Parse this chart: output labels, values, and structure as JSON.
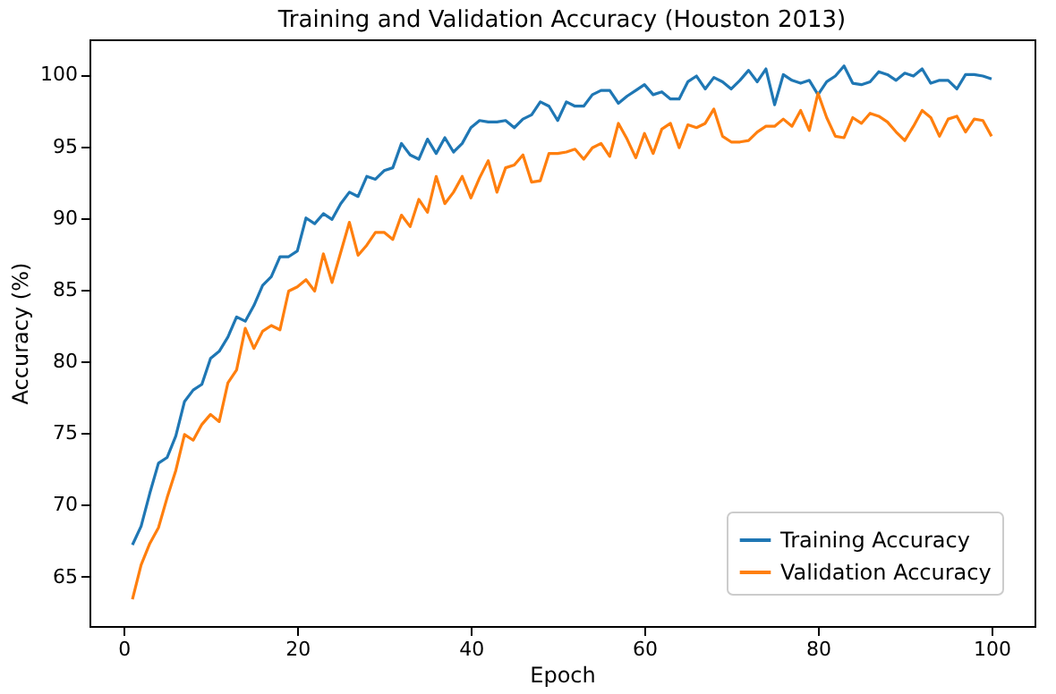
{
  "chart_data": {
    "type": "line",
    "title": "Training and Validation Accuracy (Houston 2013)",
    "xlabel": "Epoch",
    "ylabel": "Accuracy (%)",
    "x": [
      1,
      2,
      3,
      4,
      5,
      6,
      7,
      8,
      9,
      10,
      11,
      12,
      13,
      14,
      15,
      16,
      17,
      18,
      19,
      20,
      21,
      22,
      23,
      24,
      25,
      26,
      27,
      28,
      29,
      30,
      31,
      32,
      33,
      34,
      35,
      36,
      37,
      38,
      39,
      40,
      41,
      42,
      43,
      44,
      45,
      46,
      47,
      48,
      49,
      50,
      51,
      52,
      53,
      54,
      55,
      56,
      57,
      58,
      59,
      60,
      61,
      62,
      63,
      64,
      65,
      66,
      67,
      68,
      69,
      70,
      71,
      72,
      73,
      74,
      75,
      76,
      77,
      78,
      79,
      80,
      81,
      82,
      83,
      84,
      85,
      86,
      87,
      88,
      89,
      90,
      91,
      92,
      93,
      94,
      95,
      96,
      97,
      98,
      99,
      100
    ],
    "series": [
      {
        "name": "Training Accuracy",
        "color": "#1f77b4",
        "values": [
          67.2,
          68.5,
          70.8,
          72.9,
          73.3,
          74.8,
          77.2,
          78.0,
          78.4,
          80.2,
          80.7,
          81.7,
          83.1,
          82.8,
          83.9,
          85.3,
          85.9,
          87.3,
          87.3,
          87.7,
          90.0,
          89.6,
          90.3,
          89.9,
          91.0,
          91.8,
          91.5,
          92.9,
          92.7,
          93.3,
          93.5,
          95.2,
          94.4,
          94.1,
          95.5,
          94.5,
          95.6,
          94.6,
          95.2,
          96.3,
          96.8,
          96.7,
          96.7,
          96.8,
          96.3,
          96.9,
          97.2,
          98.1,
          97.8,
          96.8,
          98.1,
          97.8,
          97.8,
          98.6,
          98.9,
          98.9,
          98.0,
          98.5,
          98.9,
          99.3,
          98.6,
          98.8,
          98.3,
          98.3,
          99.5,
          99.9,
          99.0,
          99.8,
          99.5,
          99.0,
          99.6,
          100.3,
          99.5,
          100.4,
          97.9,
          100.0,
          99.6,
          99.4,
          99.6,
          98.6,
          99.5,
          99.9,
          100.6,
          99.4,
          99.3,
          99.5,
          100.2,
          100.0,
          99.6,
          100.1,
          99.9,
          100.4,
          99.4,
          99.6,
          99.6,
          99.0,
          100.0,
          100.0,
          99.9,
          99.7
        ]
      },
      {
        "name": "Validation Accuracy",
        "color": "#ff7f0e",
        "values": [
          63.4,
          65.8,
          67.3,
          68.4,
          70.5,
          72.4,
          74.9,
          74.5,
          75.6,
          76.3,
          75.8,
          78.5,
          79.4,
          82.3,
          80.9,
          82.1,
          82.5,
          82.2,
          84.9,
          85.2,
          85.7,
          84.9,
          87.5,
          85.5,
          87.6,
          89.7,
          87.4,
          88.1,
          89.0,
          89.0,
          88.5,
          90.2,
          89.4,
          91.3,
          90.4,
          92.9,
          91.0,
          91.8,
          92.9,
          91.4,
          92.8,
          94.0,
          91.8,
          93.5,
          93.7,
          94.4,
          92.5,
          92.6,
          94.5,
          94.5,
          94.6,
          94.8,
          94.1,
          94.9,
          95.2,
          94.3,
          96.6,
          95.5,
          94.2,
          95.9,
          94.5,
          96.2,
          96.6,
          94.9,
          96.5,
          96.3,
          96.6,
          97.6,
          95.7,
          95.3,
          95.3,
          95.4,
          96.0,
          96.4,
          96.4,
          96.9,
          96.4,
          97.5,
          96.1,
          98.7,
          97.0,
          95.7,
          95.6,
          97.0,
          96.6,
          97.3,
          97.1,
          96.7,
          96.0,
          95.4,
          96.4,
          97.5,
          97.0,
          95.7,
          96.9,
          97.1,
          96.0,
          96.9,
          96.8,
          95.7
        ]
      }
    ],
    "xlim": [
      -3.95,
      104.95
    ],
    "ylim": [
      61.54,
      102.46
    ],
    "xticks": [
      0,
      20,
      40,
      60,
      80,
      100
    ],
    "yticks": [
      65,
      70,
      75,
      80,
      85,
      90,
      95,
      100
    ],
    "legend": "bottom right",
    "grid": false,
    "marker": "none",
    "line_style": "solid"
  }
}
